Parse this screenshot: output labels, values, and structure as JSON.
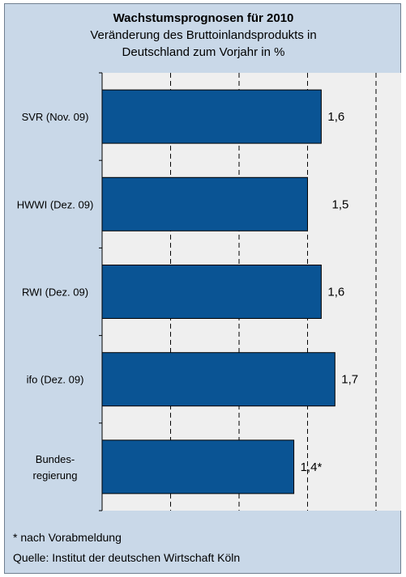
{
  "chart_data": {
    "type": "bar",
    "orientation": "horizontal",
    "title": "Wachstumsprognosen für 2010",
    "subtitle_lines": [
      "Veränderung des Bruttoinlandsprodukts in",
      "Deutschland zum Vorjahr in %"
    ],
    "categories": [
      {
        "label_lines": [
          "SVR (Nov. 09)"
        ]
      },
      {
        "label_lines": [
          "HWWI (Dez. 09)"
        ]
      },
      {
        "label_lines": [
          "RWI (Dez. 09)"
        ]
      },
      {
        "label_lines": [
          "ifo (Dez. 09)"
        ]
      },
      {
        "label_lines": [
          "Bundes-",
          "regierung"
        ]
      }
    ],
    "values": [
      1.6,
      1.5,
      1.6,
      1.7,
      1.4
    ],
    "value_labels": [
      "1,6",
      "1,5",
      "1,6",
      "1,7",
      "1,4*"
    ],
    "xlim": [
      0,
      2.0
    ],
    "gridlines_at": [
      0.5,
      1.0,
      1.5,
      2.0
    ],
    "grid": "vertical dashed",
    "bar_color": "#0a5494",
    "plot_background": "#efefef"
  },
  "footer": {
    "note": "* nach Vorabmeldung",
    "source": "Quelle: Institut der deutschen Wirtschaft Köln"
  }
}
